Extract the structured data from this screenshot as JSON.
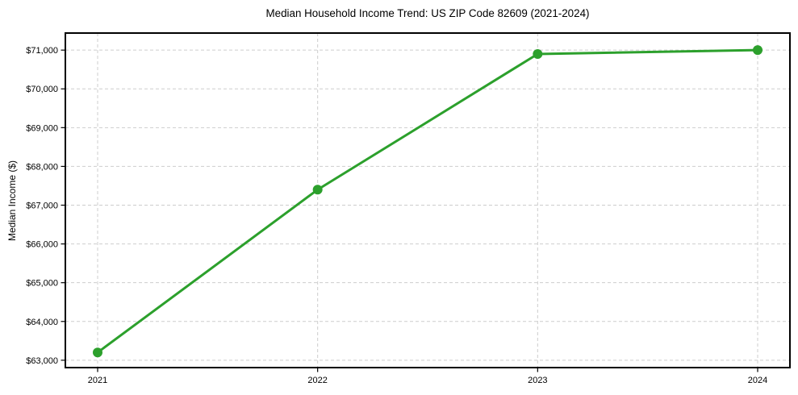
{
  "figure": {
    "background": "#ffffff"
  },
  "chart_data": {
    "type": "line",
    "title": "Median Household Income Trend: US ZIP Code 82609 (2021-2024)",
    "xlabel": "",
    "ylabel": "Median Income ($)",
    "categories": [
      "2021",
      "2022",
      "2023",
      "2024"
    ],
    "values": [
      63200,
      67400,
      70900,
      71000
    ],
    "ylim": [
      62810,
      71440
    ],
    "yticks": [
      63000,
      64000,
      65000,
      66000,
      67000,
      68000,
      69000,
      70000,
      71000
    ],
    "ytick_labels": [
      "$63,000",
      "$64,000",
      "$65,000",
      "$66,000",
      "$67,000",
      "$68,000",
      "$69,000",
      "$70,000",
      "$71,000"
    ],
    "grid": "dashed, both axes",
    "legend": "none",
    "line_color": "#2ca02c",
    "marker": "circle",
    "grid_color": "#cdcdcd",
    "axis_color": "#000000"
  }
}
